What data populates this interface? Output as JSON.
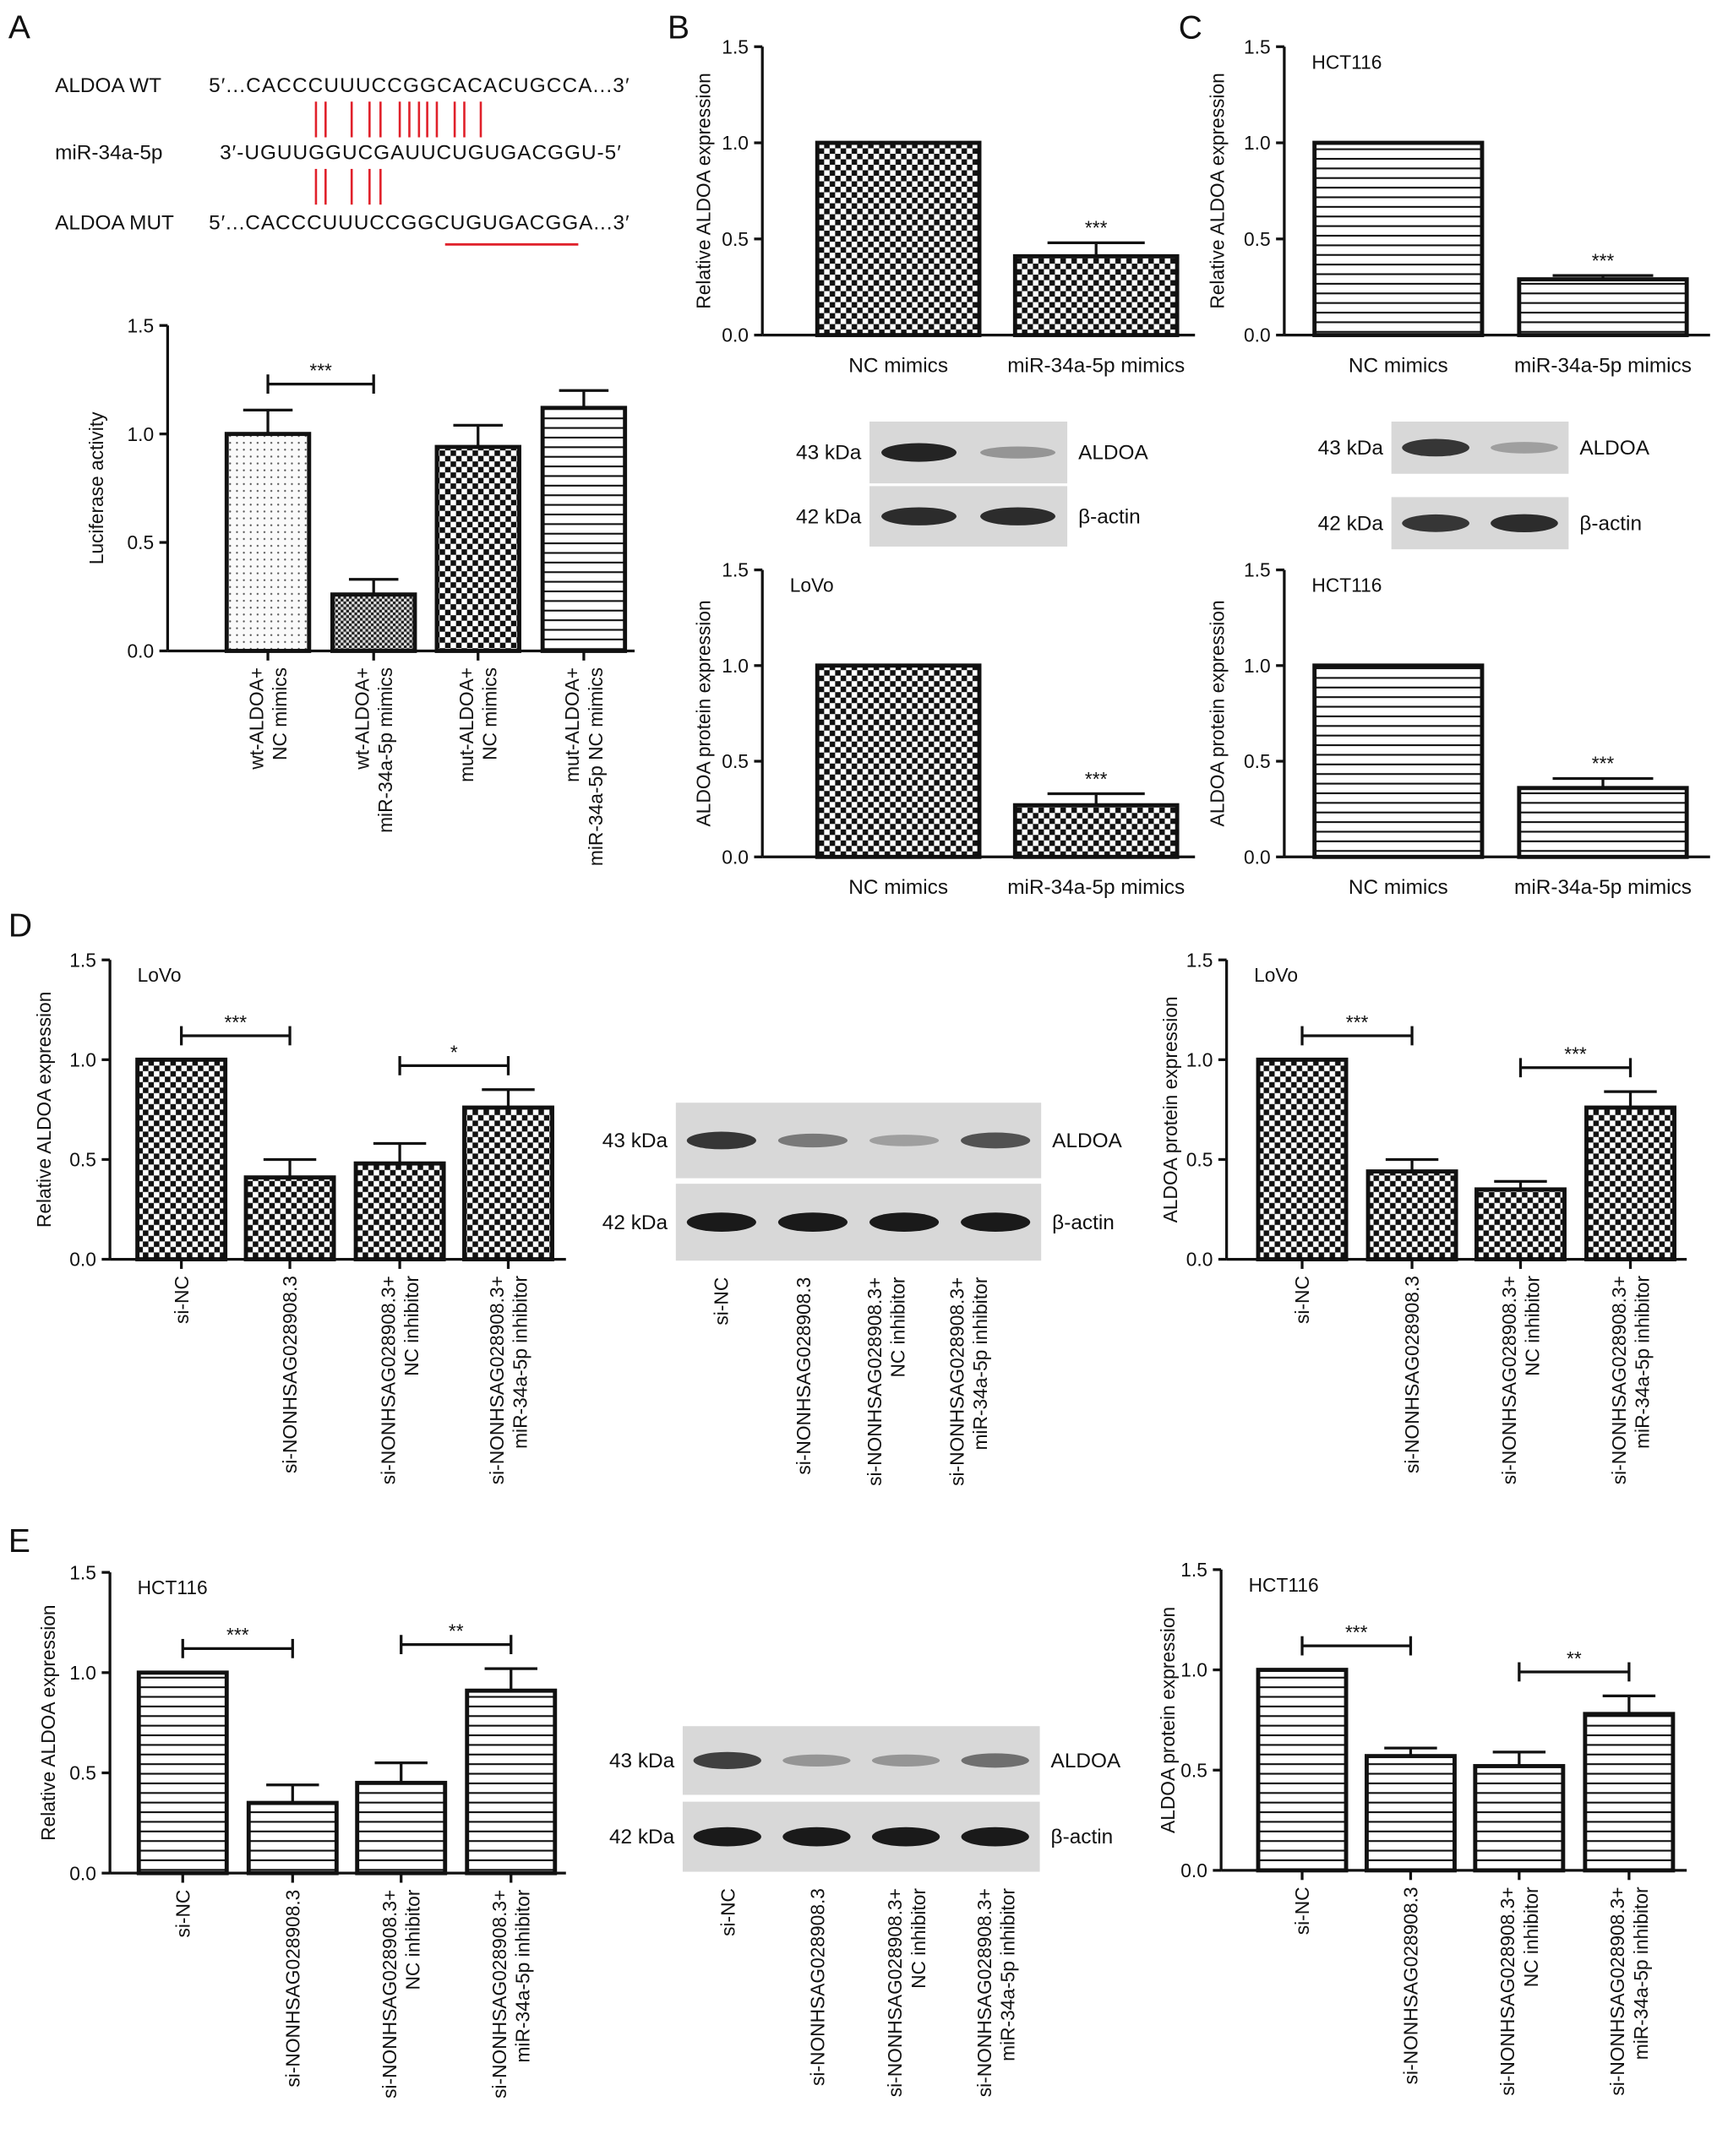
{
  "panel_letters": {
    "A": "A",
    "B": "B",
    "C": "C",
    "D": "D",
    "E": "E"
  },
  "sequence": {
    "rows": [
      {
        "label": "ALDOA WT",
        "seq": "5′...CACCCUUUCCGGCACACUGCCA...3′"
      },
      {
        "label": "miR-34a-5p",
        "seq": "3′-UGUUGGUCGAUUCUGUGACGGU-5′"
      },
      {
        "label": "ALDOA MUT",
        "seq": "5′...CACCCUUUCCGGCUGUGACGGA...3′"
      }
    ],
    "pair_color": "#e0202a",
    "wt_pairs": 13,
    "mut_pairs": 5
  },
  "chart_data": [
    {
      "id": "A",
      "type": "bar",
      "title": "",
      "ylabel": "Luciferase activity",
      "cell_line": "",
      "ylim": [
        0,
        1.5
      ],
      "yticks": [
        "0.0",
        "0.5",
        "1.0",
        "1.5"
      ],
      "categories": [
        [
          "wt-ALDOA+",
          "NC mimics"
        ],
        [
          "wt-ALDOA+",
          "miR-34a-5p mimics"
        ],
        [
          "mut-ALDOA+",
          "NC mimics"
        ],
        [
          "mut-ALDOA+",
          "miR-34a-5p NC mimics"
        ]
      ],
      "values": [
        1.0,
        0.26,
        0.94,
        1.12
      ],
      "errors": [
        0.11,
        0.07,
        0.1,
        0.08
      ],
      "patterns": [
        "dots",
        "finecheck",
        "check",
        "hlines"
      ],
      "significance": [
        {
          "from": 0,
          "to": 1,
          "label": "***"
        }
      ]
    },
    {
      "id": "Bq",
      "type": "bar",
      "ylabel": "Relative ALDOA expression",
      "cell_line": "",
      "ylim": [
        0,
        1.5
      ],
      "yticks": [
        "0.0",
        "0.5",
        "1.0",
        "1.5"
      ],
      "categories": [
        [
          "NC mimics"
        ],
        [
          "miR-34a-5p mimics"
        ]
      ],
      "values": [
        1.0,
        0.41
      ],
      "errors": [
        0,
        0.07
      ],
      "patterns": [
        "check",
        "check"
      ],
      "stars": [
        null,
        "***"
      ]
    },
    {
      "id": "Cq",
      "type": "bar",
      "ylabel": "Relative ALDOA expression",
      "cell_line": "HCT116",
      "ylim": [
        0,
        1.5
      ],
      "yticks": [
        "0.0",
        "0.5",
        "1.0",
        "1.5"
      ],
      "categories": [
        [
          "NC mimics"
        ],
        [
          "miR-34a-5p mimics"
        ]
      ],
      "values": [
        1.0,
        0.29
      ],
      "errors": [
        0,
        0.02
      ],
      "patterns": [
        "hlines",
        "hlines"
      ],
      "stars": [
        null,
        "***"
      ]
    },
    {
      "id": "Bp",
      "type": "bar",
      "ylabel": "ALDOA protein expression",
      "cell_line": "LoVo",
      "ylim": [
        0,
        1.5
      ],
      "yticks": [
        "0.0",
        "0.5",
        "1.0",
        "1.5"
      ],
      "categories": [
        [
          "NC mimics"
        ],
        [
          "miR-34a-5p mimics"
        ]
      ],
      "values": [
        1.0,
        0.27
      ],
      "errors": [
        0,
        0.06
      ],
      "patterns": [
        "check",
        "check"
      ],
      "stars": [
        null,
        "***"
      ]
    },
    {
      "id": "Cp",
      "type": "bar",
      "ylabel": "ALDOA protein expression",
      "cell_line": "HCT116",
      "ylim": [
        0,
        1.5
      ],
      "yticks": [
        "0.0",
        "0.5",
        "1.0",
        "1.5"
      ],
      "categories": [
        [
          "NC mimics"
        ],
        [
          "miR-34a-5p mimics"
        ]
      ],
      "values": [
        1.0,
        0.36
      ],
      "errors": [
        0,
        0.05
      ],
      "patterns": [
        "hlines",
        "hlines"
      ],
      "stars": [
        null,
        "***"
      ]
    },
    {
      "id": "Dl",
      "type": "bar",
      "ylabel": "Relative ALDOA expression",
      "cell_line": "LoVo",
      "ylim": [
        0,
        1.5
      ],
      "yticks": [
        "0.0",
        "0.5",
        "1.0",
        "1.5"
      ],
      "categories": [
        [
          "si-NC"
        ],
        [
          "si-NONHSAG028908.3"
        ],
        [
          "si-NONHSAG028908.3+",
          "NC inhibitor"
        ],
        [
          "si-NONHSAG028908.3+",
          "miR-34a-5p inhibitor"
        ]
      ],
      "values": [
        1.0,
        0.41,
        0.48,
        0.76
      ],
      "errors": [
        0,
        0.09,
        0.1,
        0.09
      ],
      "patterns": [
        "check",
        "check",
        "check",
        "check"
      ],
      "significance": [
        {
          "from": 0,
          "to": 1,
          "label": "***"
        },
        {
          "from": 2,
          "to": 3,
          "label": "*"
        }
      ]
    },
    {
      "id": "Dr",
      "type": "bar",
      "ylabel": "ALDOA protein expression",
      "cell_line": "LoVo",
      "ylim": [
        0,
        1.5
      ],
      "yticks": [
        "0.0",
        "0.5",
        "1.0",
        "1.5"
      ],
      "categories": [
        [
          "si-NC"
        ],
        [
          "si-NONHSAG028908.3"
        ],
        [
          "si-NONHSAG028908.3+",
          "NC inhibitor"
        ],
        [
          "si-NONHSAG028908.3+",
          "miR-34a-5p inhibitor"
        ]
      ],
      "values": [
        1.0,
        0.44,
        0.35,
        0.76
      ],
      "errors": [
        0,
        0.06,
        0.04,
        0.08
      ],
      "patterns": [
        "check",
        "check",
        "check",
        "check"
      ],
      "significance": [
        {
          "from": 0,
          "to": 1,
          "label": "***"
        },
        {
          "from": 2,
          "to": 3,
          "label": "***"
        }
      ]
    },
    {
      "id": "El",
      "type": "bar",
      "ylabel": "Relative ALDOA expression",
      "cell_line": "HCT116",
      "ylim": [
        0,
        1.5
      ],
      "yticks": [
        "0.0",
        "0.5",
        "1.0",
        "1.5"
      ],
      "categories": [
        [
          "si-NC"
        ],
        [
          "si-NONHSAG028908.3"
        ],
        [
          "si-NONHSAG028908.3+",
          "NC inhibitor"
        ],
        [
          "si-NONHSAG028908.3+",
          "miR-34a-5p inhibitor"
        ]
      ],
      "values": [
        1.0,
        0.35,
        0.45,
        0.91
      ],
      "errors": [
        0,
        0.09,
        0.1,
        0.11
      ],
      "patterns": [
        "hlines",
        "hlines",
        "hlines",
        "hlines"
      ],
      "significance": [
        {
          "from": 0,
          "to": 1,
          "label": "***"
        },
        {
          "from": 2,
          "to": 3,
          "label": "**"
        }
      ]
    },
    {
      "id": "Er",
      "type": "bar",
      "ylabel": "ALDOA protein expression",
      "cell_line": "HCT116",
      "ylim": [
        0,
        1.5
      ],
      "yticks": [
        "0.0",
        "0.5",
        "1.0",
        "1.5"
      ],
      "categories": [
        [
          "si-NC"
        ],
        [
          "si-NONHSAG028908.3"
        ],
        [
          "si-NONHSAG028908.3+",
          "NC inhibitor"
        ],
        [
          "si-NONHSAG028908.3+",
          "miR-34a-5p inhibitor"
        ]
      ],
      "values": [
        1.0,
        0.57,
        0.52,
        0.78
      ],
      "errors": [
        0,
        0.04,
        0.07,
        0.09
      ],
      "patterns": [
        "hlines",
        "hlines",
        "hlines",
        "hlines"
      ],
      "significance": [
        {
          "from": 0,
          "to": 1,
          "label": "***"
        },
        {
          "from": 2,
          "to": 3,
          "label": "**"
        }
      ]
    }
  ],
  "blots": [
    {
      "id": "B",
      "rows": [
        {
          "kda": "43 kDa",
          "protein": "ALDOA",
          "bands": [
            0.95,
            0.35
          ]
        },
        {
          "kda": "42 kDa",
          "protein": "β-actin",
          "bands": [
            0.9,
            0.9
          ]
        }
      ],
      "lanes": []
    },
    {
      "id": "C",
      "rows": [
        {
          "kda": "43 kDa",
          "protein": "ALDOA",
          "bands": [
            0.85,
            0.3
          ]
        },
        {
          "kda": "42 kDa",
          "protein": "β-actin",
          "bands": [
            0.85,
            0.9
          ]
        }
      ],
      "lanes": []
    },
    {
      "id": "D",
      "rows": [
        {
          "kda": "43 kDa",
          "protein": "ALDOA",
          "bands": [
            0.85,
            0.5,
            0.3,
            0.7
          ]
        },
        {
          "kda": "42 kDa",
          "protein": "β-actin",
          "bands": [
            1,
            1,
            1,
            1
          ]
        }
      ],
      "lanes": [
        [
          "si-NC"
        ],
        [
          "si-NONHSAG028908.3"
        ],
        [
          "si-NONHSAG028908.3+",
          "NC inhibitor"
        ],
        [
          "si-NONHSAG028908.3+",
          "miR-34a-5p inhibitor"
        ]
      ]
    },
    {
      "id": "E",
      "rows": [
        {
          "kda": "43 kDa",
          "protein": "ALDOA",
          "bands": [
            0.8,
            0.35,
            0.35,
            0.55
          ]
        },
        {
          "kda": "42 kDa",
          "protein": "β-actin",
          "bands": [
            1,
            1,
            1,
            1
          ]
        }
      ],
      "lanes": [
        [
          "si-NC"
        ],
        [
          "si-NONHSAG028908.3"
        ],
        [
          "si-NONHSAG028908.3+",
          "NC inhibitor"
        ],
        [
          "si-NONHSAG028908.3+",
          "miR-34a-5p inhibitor"
        ]
      ]
    }
  ]
}
